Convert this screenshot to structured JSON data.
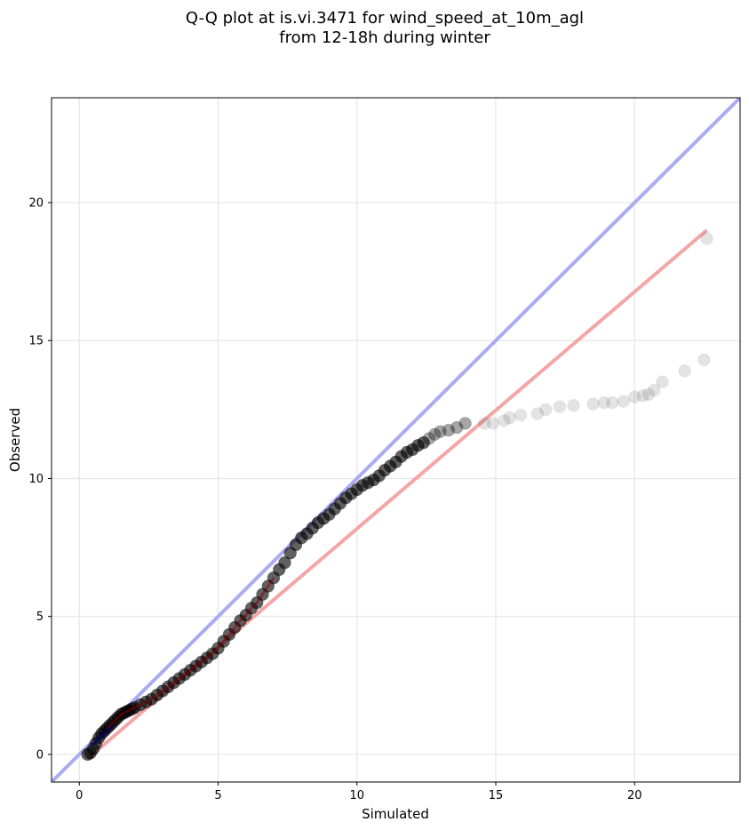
{
  "chart_data": {
    "type": "scatter",
    "title_lines": [
      "Q-Q plot at is.vi.3471 for wind_speed_at_10m_agl",
      "from 12-18h during winter"
    ],
    "xlabel": "Simulated",
    "ylabel": "Observed",
    "xlim": [
      -1.0,
      23.8
    ],
    "ylim": [
      -1.0,
      23.8
    ],
    "xticks": [
      0,
      5,
      10,
      15,
      20
    ],
    "yticks": [
      0,
      5,
      10,
      15,
      20
    ],
    "grid": true,
    "colors": {
      "points": "#000000",
      "identity_line": "#a9acf2",
      "fit_line": "#f4a6a6",
      "lower_fit_overlay": "#8b0000",
      "lower_identity_overlay": "#00006e",
      "grid": "#e6e6e6"
    },
    "identity_line": {
      "x": [
        -1.0,
        23.8
      ],
      "y": [
        -1.0,
        23.8
      ]
    },
    "fit_line": {
      "x": [
        0.3,
        22.6
      ],
      "y": [
        -0.15,
        19.0
      ]
    },
    "quantiles": {
      "x": [
        0.3,
        0.4,
        0.5,
        0.6,
        0.7,
        0.8,
        0.9,
        1.0,
        1.1,
        1.2,
        1.3,
        1.4,
        1.5,
        1.6,
        1.7,
        1.8,
        1.9,
        2.0,
        2.2,
        2.4,
        2.6,
        2.8,
        3.0,
        3.2,
        3.4,
        3.6,
        3.8,
        4.0,
        4.2,
        4.4,
        4.6,
        4.8,
        5.0,
        5.2,
        5.4,
        5.6,
        5.8,
        6.0,
        6.2,
        6.4,
        6.6,
        6.8,
        7.0,
        7.2,
        7.4,
        7.6,
        7.8,
        8.0,
        8.2,
        8.4,
        8.6,
        8.8,
        9.0,
        9.2,
        9.4,
        9.6,
        9.8,
        10.0,
        10.2,
        10.4,
        10.6,
        10.8,
        11.0,
        11.2,
        11.4,
        11.6,
        11.8,
        12.0,
        12.2,
        12.4,
        12.6,
        12.8,
        13.0,
        13.3,
        13.6,
        13.9,
        14.6,
        14.9,
        15.3,
        15.5,
        15.9,
        16.5,
        16.8,
        17.3,
        17.8,
        18.5,
        18.9,
        19.2,
        19.6,
        20.0,
        20.3,
        20.5,
        20.7,
        21.0,
        21.8,
        22.5,
        22.6
      ],
      "y": [
        0.0,
        0.05,
        0.2,
        0.4,
        0.6,
        0.75,
        0.85,
        0.95,
        1.05,
        1.15,
        1.25,
        1.35,
        1.45,
        1.5,
        1.55,
        1.6,
        1.65,
        1.7,
        1.8,
        1.9,
        2.0,
        2.15,
        2.3,
        2.45,
        2.6,
        2.75,
        2.9,
        3.05,
        3.2,
        3.35,
        3.5,
        3.65,
        3.85,
        4.1,
        4.35,
        4.6,
        4.85,
        5.05,
        5.3,
        5.5,
        5.8,
        6.1,
        6.4,
        6.7,
        6.95,
        7.3,
        7.6,
        7.85,
        8.0,
        8.2,
        8.4,
        8.55,
        8.7,
        8.9,
        9.1,
        9.3,
        9.45,
        9.6,
        9.75,
        9.85,
        9.95,
        10.1,
        10.3,
        10.45,
        10.6,
        10.8,
        10.95,
        11.05,
        11.2,
        11.3,
        11.45,
        11.6,
        11.7,
        11.75,
        11.85,
        12.0,
        12.0,
        12.0,
        12.1,
        12.2,
        12.3,
        12.35,
        12.5,
        12.6,
        12.65,
        12.7,
        12.75,
        12.75,
        12.8,
        12.95,
        13.0,
        13.05,
        13.2,
        13.5,
        13.9,
        14.3,
        18.7
      ]
    }
  }
}
